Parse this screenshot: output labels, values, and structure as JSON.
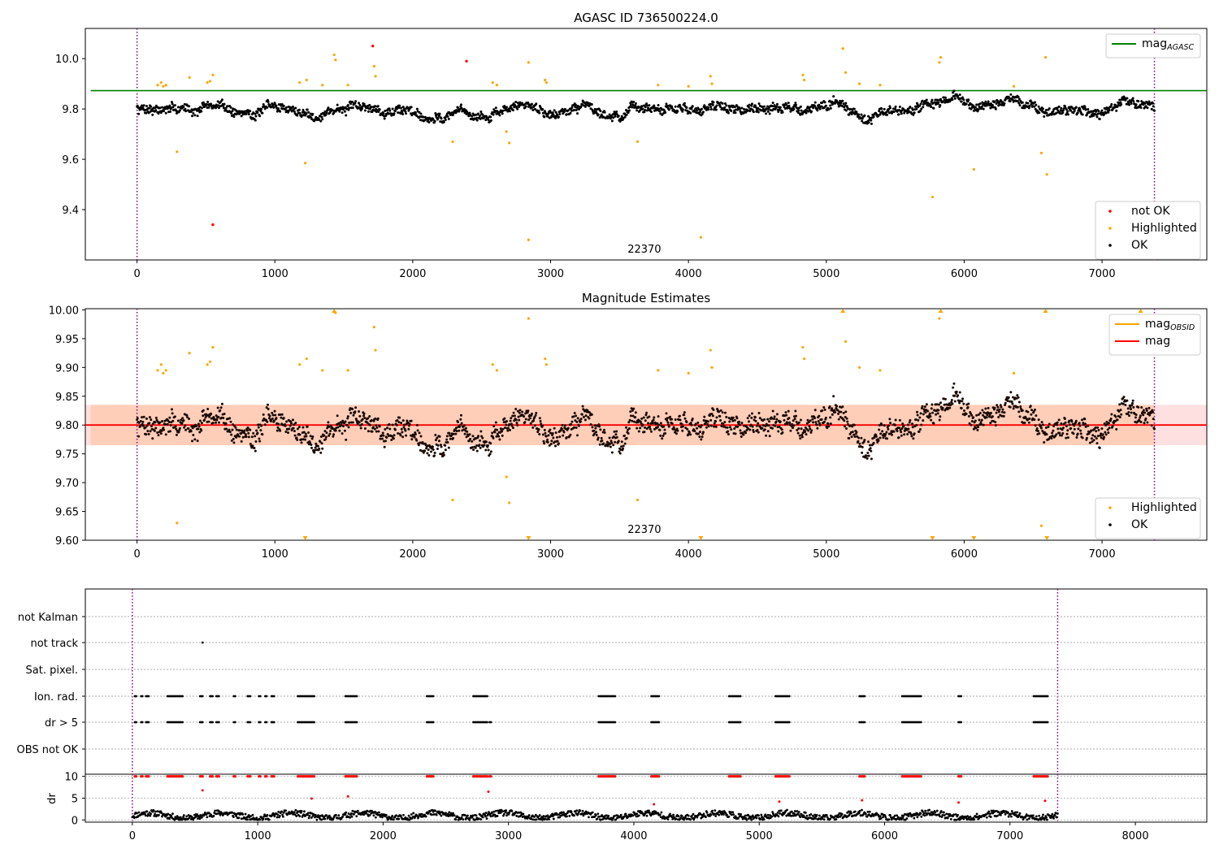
{
  "figure_title": "AGASC ID 736500224.0",
  "chart_data": [
    {
      "type": "scatter",
      "title": "AGASC ID 736500224.0",
      "xlim": [
        -375,
        7760
      ],
      "ylim": [
        9.2,
        10.12
      ],
      "x_ticks": [
        "0",
        "1000",
        "2000",
        "3000",
        "4000",
        "5000",
        "6000",
        "7000",
        "8000"
      ],
      "y_ticks": [
        "9.4",
        "9.6",
        "9.8",
        "10.0"
      ],
      "grid": false,
      "vlines_dotted": [
        0,
        7380
      ],
      "obsid_label": "22370",
      "hline": {
        "y": 9.873,
        "color": "#008000"
      },
      "legend_top": {
        "placement": "top-right",
        "entries": [
          {
            "label": "mag",
            "sub": "AGASC",
            "color": "#008000"
          }
        ]
      },
      "legend_bottom": {
        "placement": "lower-right",
        "entries": [
          {
            "label": "not OK",
            "color": "#ff0000"
          },
          {
            "label": "Highlighted",
            "color": "#ffa500"
          },
          {
            "label": "OK",
            "color": "#000000"
          }
        ]
      },
      "series": [
        {
          "name": "not OK",
          "color": "#ff0000",
          "points": [
            [
              1710,
              10.05
            ],
            [
              2390,
              9.99
            ],
            [
              550,
              9.34
            ]
          ]
        },
        {
          "name": "Highlighted",
          "color": "#ffa500",
          "points": [
            [
              150,
              9.895
            ],
            [
              175,
              9.905
            ],
            [
              190,
              9.89
            ],
            [
              210,
              9.895
            ],
            [
              290,
              9.63
            ],
            [
              380,
              9.925
            ],
            [
              510,
              9.905
            ],
            [
              530,
              9.91
            ],
            [
              550,
              9.935
            ],
            [
              1180,
              9.905
            ],
            [
              1220,
              9.585
            ],
            [
              1230,
              9.915
            ],
            [
              1345,
              9.895
            ],
            [
              1430,
              10.015
            ],
            [
              1440,
              9.995
            ],
            [
              1530,
              9.895
            ],
            [
              1720,
              9.97
            ],
            [
              1730,
              9.93
            ],
            [
              2290,
              9.67
            ],
            [
              2580,
              9.905
            ],
            [
              2610,
              9.895
            ],
            [
              2680,
              9.71
            ],
            [
              2700,
              9.665
            ],
            [
              2840,
              9.985
            ],
            [
              2960,
              9.915
            ],
            [
              2970,
              9.905
            ],
            [
              3630,
              9.67
            ],
            [
              3780,
              9.895
            ],
            [
              4000,
              9.89
            ],
            [
              4160,
              9.93
            ],
            [
              4170,
              9.9
            ],
            [
              4830,
              9.935
            ],
            [
              4840,
              9.915
            ],
            [
              5120,
              10.04
            ],
            [
              5140,
              9.945
            ],
            [
              5240,
              9.9
            ],
            [
              5390,
              9.895
            ],
            [
              5770,
              9.45
            ],
            [
              5820,
              9.985
            ],
            [
              5830,
              10.005
            ],
            [
              6070,
              9.56
            ],
            [
              6360,
              9.89
            ],
            [
              6560,
              9.625
            ],
            [
              6600,
              9.54
            ],
            [
              6590,
              10.005
            ],
            [
              7280,
              10.015
            ],
            [
              2840,
              9.28
            ],
            [
              4090,
              9.29
            ]
          ]
        },
        {
          "name": "OK",
          "color": "#000000",
          "generated": true,
          "seed": 7,
          "center": 9.8,
          "x_range": [
            0,
            7380
          ]
        }
      ]
    },
    {
      "type": "scatter",
      "title": "Magnitude Estimates",
      "xlim": [
        -375,
        7760
      ],
      "ylim": [
        9.6,
        10.002
      ],
      "x_ticks": [
        "0",
        "1000",
        "2000",
        "3000",
        "4000",
        "5000",
        "6000",
        "7000",
        "8000"
      ],
      "y_ticks": [
        "9.60",
        "9.65",
        "9.70",
        "9.75",
        "9.80",
        "9.85",
        "9.90",
        "9.95",
        "10.00"
      ],
      "grid": false,
      "obsid_label": "22370",
      "hline": {
        "y": 9.8,
        "color": "#ff0000"
      },
      "band_outer": [
        9.765,
        9.835
      ],
      "band_inner": [
        9.765,
        9.835
      ],
      "obs_band_x": [
        0,
        7380
      ],
      "legend_top": {
        "placement": "top-right",
        "entries": [
          {
            "label": "mag",
            "sub": "OBSID",
            "color": "#ffa500"
          },
          {
            "label": "mag",
            "color": "#ff0000"
          }
        ]
      },
      "legend_bottom": {
        "placement": "lower-right",
        "entries": [
          {
            "label": "Highlighted",
            "color": "#ffa500"
          },
          {
            "label": "OK",
            "color": "#000000"
          }
        ]
      },
      "clipped_high_x": [
        1430,
        5120,
        5830,
        6590,
        7280
      ],
      "clipped_low_x": [
        1220,
        2840,
        4090,
        5770,
        6070,
        6600
      ]
    },
    {
      "type": "scatter",
      "title": "",
      "xlim": [
        -375,
        8570
      ],
      "x_ticks": [
        "0",
        "1000",
        "2000",
        "3000",
        "4000",
        "5000",
        "6000",
        "7000",
        "8000"
      ],
      "flag_rows": [
        "not Kalman",
        "not track",
        "Sat. pixel.",
        "Ion. rad.",
        "dr > 5",
        "OBS not OK"
      ],
      "flag_points": {
        "not track": [
          560
        ],
        "Ion. rad.": [
          [
            20,
            30
          ],
          [
            70,
            80
          ],
          [
            110,
            130
          ],
          [
            280,
            400
          ],
          [
            540,
            560
          ],
          [
            620,
            640
          ],
          [
            670,
            690
          ],
          [
            810,
            820
          ],
          [
            920,
            940
          ],
          [
            1010,
            1020
          ],
          [
            1060,
            1070
          ],
          [
            1110,
            1130
          ],
          [
            1320,
            1450
          ],
          [
            1700,
            1790
          ],
          [
            2350,
            2400
          ],
          [
            2720,
            2830
          ],
          [
            3720,
            3850
          ],
          [
            4140,
            4200
          ],
          [
            4760,
            4850
          ],
          [
            5130,
            5240
          ],
          [
            5800,
            5840
          ],
          [
            6140,
            6290
          ],
          [
            6590,
            6610
          ],
          [
            7190,
            7300
          ]
        ],
        "dr > 5": [
          [
            20,
            30
          ],
          [
            70,
            80
          ],
          [
            110,
            130
          ],
          [
            280,
            400
          ],
          [
            540,
            560
          ],
          [
            620,
            640
          ],
          [
            670,
            690
          ],
          [
            810,
            820
          ],
          [
            920,
            940
          ],
          [
            1010,
            1020
          ],
          [
            1060,
            1070
          ],
          [
            1110,
            1130
          ],
          [
            1320,
            1450
          ],
          [
            1700,
            1790
          ],
          [
            2350,
            2400
          ],
          [
            2720,
            2830
          ],
          [
            2850,
            2860
          ],
          [
            3720,
            3850
          ],
          [
            4140,
            4200
          ],
          [
            4760,
            4850
          ],
          [
            5130,
            5240
          ],
          [
            5800,
            5840
          ],
          [
            6140,
            6290
          ],
          [
            6590,
            6610
          ],
          [
            7190,
            7300
          ]
        ]
      },
      "dr_ylabel": "dr",
      "dr_ylim": [
        -0.5,
        10.5
      ],
      "dr_y_ticks": [
        "0",
        "5",
        "10"
      ],
      "dr_threshold": 5
    }
  ]
}
